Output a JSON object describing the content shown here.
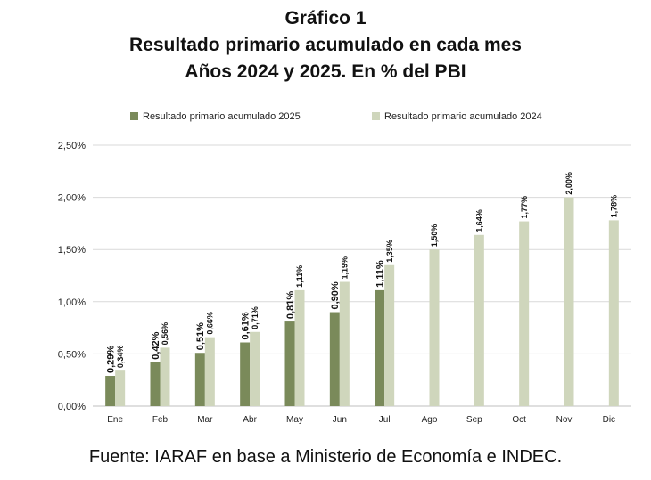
{
  "title_lines": [
    "Gráfico 1",
    "Resultado primario acumulado en cada mes",
    "Años 2024 y 2025. En % del PBI"
  ],
  "source": "Fuente: IARAF en base a Ministerio de Economía e INDEC.",
  "colors": {
    "series_2025": "#7a8a5a",
    "series_2024": "#cfd6bc",
    "gridline": "#d9d9d9",
    "axis": "#bfbfbf"
  },
  "chart_data": {
    "type": "bar",
    "categories": [
      "Ene",
      "Feb",
      "Mar",
      "Abr",
      "May",
      "Jun",
      "Jul",
      "Ago",
      "Sep",
      "Oct",
      "Nov",
      "Dic"
    ],
    "series": [
      {
        "name": "Resultado primario acumulado 2025",
        "values": [
          0.29,
          0.42,
          0.51,
          0.61,
          0.81,
          0.9,
          1.11,
          null,
          null,
          null,
          null,
          null
        ],
        "labels": [
          "0,29%",
          "0,42%",
          "0,51%",
          "0,61%",
          "0,81%",
          "0,90%",
          "1,11%",
          null,
          null,
          null,
          null,
          null
        ]
      },
      {
        "name": "Resultado primario acumulado 2024",
        "values": [
          0.34,
          0.56,
          0.66,
          0.71,
          1.11,
          1.19,
          1.35,
          1.5,
          1.64,
          1.77,
          2.0,
          1.78
        ],
        "labels": [
          "0,34%",
          "0,56%",
          "0,66%",
          "0,71%",
          "1,11%",
          "1,19%",
          "1,35%",
          "1,50%",
          "1,64%",
          "1,77%",
          "2,00%",
          "1,78%"
        ]
      }
    ],
    "yticks": [
      "0,00%",
      "0,50%",
      "1,00%",
      "1,50%",
      "2,00%",
      "2,50%"
    ],
    "ylim": [
      0,
      2.5
    ],
    "grid": true,
    "legend_position": "top"
  }
}
